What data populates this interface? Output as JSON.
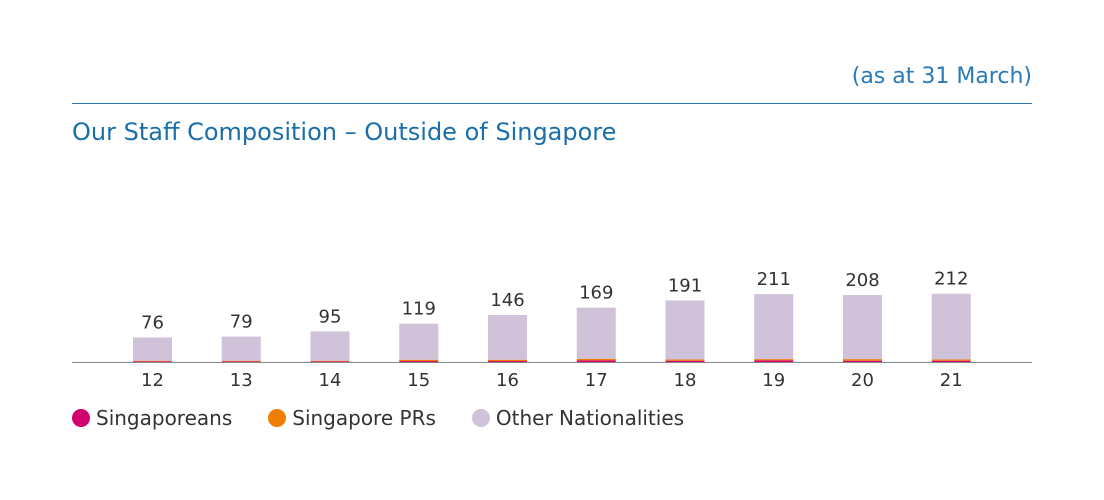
{
  "header": {
    "note": "(as at 31 March)",
    "title": "Our Staff Composition – Outside of Singapore"
  },
  "colors": {
    "singaporeans": "#d1006e",
    "prs": "#ee7d00",
    "others": "#d0c2d8",
    "axis": "#888888",
    "accent": "#2a7ab7"
  },
  "legend": [
    {
      "label": "Singaporeans",
      "color": "#d1006e"
    },
    {
      "label": "Singapore PRs",
      "color": "#ee7d00"
    },
    {
      "label": "Other Nationalities",
      "color": "#d0c2d8"
    }
  ],
  "chart_data": {
    "type": "bar",
    "stacked": true,
    "categories": [
      "12",
      "13",
      "14",
      "15",
      "16",
      "17",
      "18",
      "19",
      "20",
      "21"
    ],
    "totals": [
      76,
      79,
      95,
      119,
      146,
      169,
      191,
      211,
      208,
      212
    ],
    "series": [
      {
        "name": "Singaporeans",
        "values": [
          2,
          2,
          2,
          3,
          3,
          5,
          4,
          5,
          4,
          4
        ]
      },
      {
        "name": "Singapore PRs",
        "values": [
          2,
          2,
          2,
          4,
          4,
          5,
          4,
          4,
          5,
          4
        ]
      },
      {
        "name": "Other Nationalities",
        "values": [
          72,
          75,
          91,
          112,
          139,
          159,
          183,
          202,
          199,
          204
        ]
      }
    ],
    "xlabel": "",
    "ylabel": "",
    "ylim": [
      0,
      240
    ],
    "legend_position": "bottom-left",
    "grid": false
  }
}
